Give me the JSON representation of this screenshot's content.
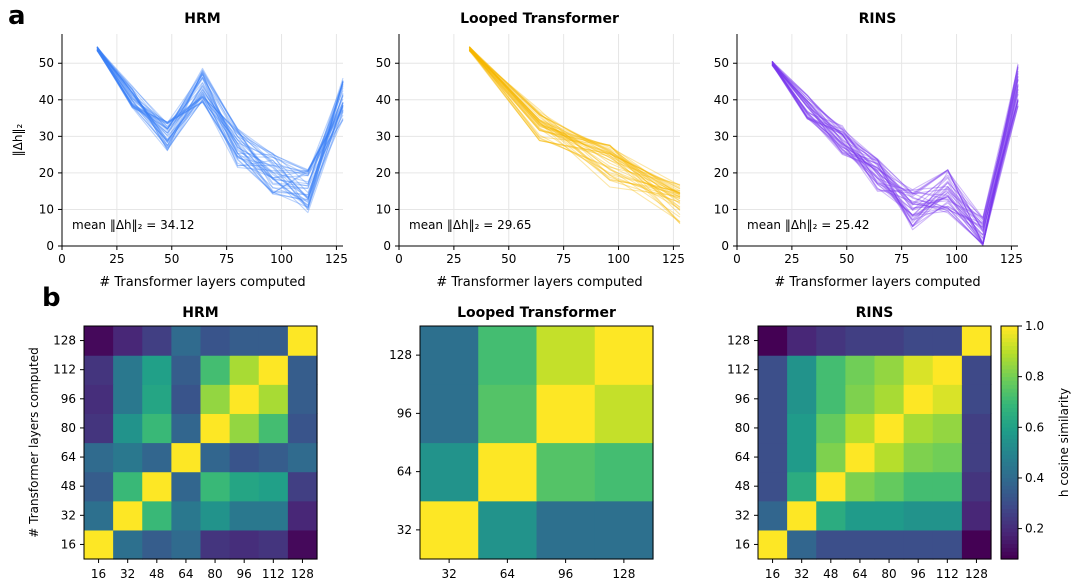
{
  "panels": {
    "a": "a",
    "b": "b"
  },
  "chart_data": [
    {
      "type": "line",
      "panel": "a",
      "title": "HRM",
      "xlabel": "# Transformer layers computed",
      "ylabel": "‖Δh‖₂",
      "xlim": [
        0,
        128
      ],
      "ylim": [
        0,
        58
      ],
      "xticks": [
        0,
        25,
        50,
        75,
        100,
        125
      ],
      "yticks": [
        0,
        10,
        20,
        30,
        40,
        50
      ],
      "grid": true,
      "color": "#3b82f6",
      "annotation": "mean ‖Δh‖₂ = 34.12",
      "x": [
        16,
        32,
        48,
        64,
        80,
        96,
        112,
        128
      ],
      "mean_curve": [
        54,
        41,
        30,
        44,
        27,
        20,
        15,
        40
      ],
      "curve_count": 40
    },
    {
      "type": "line",
      "panel": "a",
      "title": "Looped Transformer",
      "xlabel": "# Transformer layers computed",
      "ylabel": "",
      "xlim": [
        0,
        128
      ],
      "ylim": [
        0,
        58
      ],
      "xticks": [
        0,
        25,
        50,
        75,
        100,
        125
      ],
      "yticks": [
        0,
        10,
        20,
        30,
        40,
        50
      ],
      "grid": true,
      "color": "#f5b800",
      "annotation": "mean ‖Δh‖₂ = 29.65",
      "x": [
        32,
        64,
        96,
        128
      ],
      "mean_curve": [
        54,
        33,
        22,
        11
      ],
      "curve_count": 40
    },
    {
      "type": "line",
      "panel": "a",
      "title": "RINS",
      "xlabel": "# Transformer layers computed",
      "ylabel": "",
      "xlim": [
        0,
        128
      ],
      "ylim": [
        0,
        58
      ],
      "xticks": [
        0,
        25,
        50,
        75,
        100,
        125
      ],
      "yticks": [
        0,
        10,
        20,
        30,
        40,
        50
      ],
      "grid": true,
      "color": "#7c3aed",
      "annotation": "mean ‖Δh‖₂ = 25.42",
      "x": [
        16,
        32,
        48,
        64,
        80,
        96,
        112,
        128
      ],
      "mean_curve": [
        50,
        38,
        29,
        19,
        10,
        15,
        2,
        44
      ],
      "curve_count": 40
    },
    {
      "type": "heatmap",
      "panel": "b",
      "title": "HRM",
      "ylabel": "# Transformer layers computed",
      "labels": [
        "16",
        "32",
        "48",
        "64",
        "80",
        "96",
        "112",
        "128"
      ],
      "matrix": [
        [
          1.0,
          0.42,
          0.35,
          0.4,
          0.22,
          0.2,
          0.22,
          0.1
        ],
        [
          0.42,
          1.0,
          0.7,
          0.45,
          0.55,
          0.45,
          0.45,
          0.18
        ],
        [
          0.35,
          0.7,
          1.0,
          0.38,
          0.7,
          0.62,
          0.6,
          0.25
        ],
        [
          0.4,
          0.45,
          0.38,
          1.0,
          0.38,
          0.32,
          0.35,
          0.4
        ],
        [
          0.22,
          0.55,
          0.7,
          0.38,
          1.0,
          0.85,
          0.72,
          0.32
        ],
        [
          0.2,
          0.45,
          0.62,
          0.32,
          0.85,
          1.0,
          0.88,
          0.35
        ],
        [
          0.22,
          0.45,
          0.6,
          0.35,
          0.72,
          0.88,
          1.0,
          0.35
        ],
        [
          0.1,
          0.18,
          0.25,
          0.4,
          0.32,
          0.35,
          0.35,
          1.0
        ]
      ]
    },
    {
      "type": "heatmap",
      "panel": "b",
      "title": "Looped Transformer",
      "ylabel": "",
      "labels": [
        "32",
        "64",
        "96",
        "128"
      ],
      "matrix": [
        [
          1.0,
          0.55,
          0.42,
          0.42
        ],
        [
          0.55,
          1.0,
          0.75,
          0.72
        ],
        [
          0.42,
          0.75,
          1.0,
          0.92
        ],
        [
          0.42,
          0.72,
          0.92,
          1.0
        ]
      ]
    },
    {
      "type": "heatmap",
      "panel": "b",
      "title": "RINS",
      "ylabel": "",
      "labels": [
        "16",
        "32",
        "48",
        "64",
        "80",
        "96",
        "112",
        "128"
      ],
      "matrix": [
        [
          1.0,
          0.38,
          0.3,
          0.3,
          0.3,
          0.3,
          0.3,
          0.08
        ],
        [
          0.38,
          1.0,
          0.65,
          0.58,
          0.58,
          0.55,
          0.55,
          0.18
        ],
        [
          0.3,
          0.65,
          1.0,
          0.82,
          0.78,
          0.72,
          0.72,
          0.22
        ],
        [
          0.3,
          0.58,
          0.82,
          1.0,
          0.9,
          0.82,
          0.8,
          0.25
        ],
        [
          0.3,
          0.58,
          0.78,
          0.9,
          1.0,
          0.88,
          0.85,
          0.25
        ],
        [
          0.3,
          0.55,
          0.72,
          0.82,
          0.88,
          1.0,
          0.95,
          0.28
        ],
        [
          0.3,
          0.55,
          0.72,
          0.8,
          0.85,
          0.95,
          1.0,
          0.28
        ],
        [
          0.08,
          0.18,
          0.22,
          0.25,
          0.25,
          0.28,
          0.28,
          1.0
        ]
      ]
    }
  ],
  "colorbar": {
    "label": "h cosine similarity",
    "ticks": [
      "0.2",
      "0.4",
      "0.6",
      "0.8",
      "1.0"
    ],
    "tick_values": [
      0.2,
      0.4,
      0.6,
      0.8,
      1.0
    ],
    "range": [
      0.08,
      1.0
    ],
    "colormap": "viridis"
  }
}
